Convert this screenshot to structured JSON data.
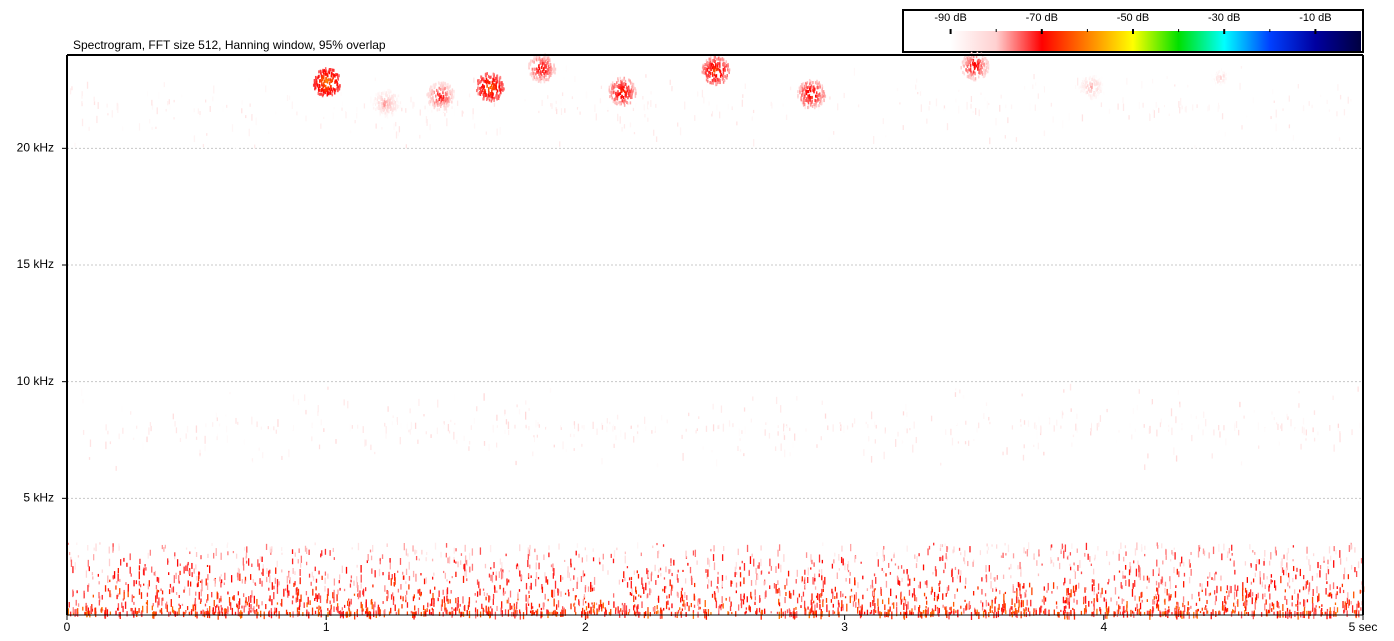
{
  "chart_data": {
    "type": "spectrogram",
    "title": "Spectrogram, FFT size 512, Hanning window, 95% overlap",
    "xlim": [
      0,
      5
    ],
    "xticks": [
      0,
      1,
      2,
      3,
      4,
      {
        "value": 5,
        "label": "5 sec"
      }
    ],
    "ylim": [
      0,
      24
    ],
    "yticks": [
      {
        "value": 5,
        "label": "5 kHz"
      },
      {
        "value": 10,
        "label": "10 kHz"
      },
      {
        "value": 15,
        "label": "15 kHz"
      },
      {
        "value": 20,
        "label": "20 kHz"
      }
    ],
    "grid": true,
    "colorbar": {
      "lim": [
        -100,
        0
      ],
      "ticks": [
        {
          "value": -90,
          "label": "-90 dB"
        },
        {
          "value": -70,
          "label": "-70 dB"
        },
        {
          "value": -50,
          "label": "-50 dB"
        },
        {
          "value": -30,
          "label": "-30 dB"
        },
        {
          "value": -10,
          "label": "-10 dB"
        }
      ],
      "minor_ticks": [
        -80,
        -60,
        -40,
        -20
      ],
      "colors": [
        "#ffffff",
        "#ffffff",
        "#ffd0d0",
        "#ff0000",
        "#ff8000",
        "#ffff00",
        "#00e000",
        "#00ffff",
        "#0040ff",
        "#0000a0",
        "#000040"
      ]
    },
    "calls": {
      "x": [
        1.0,
        1.23,
        1.44,
        1.63,
        1.83,
        2.14,
        2.5,
        2.87,
        3.5,
        3.95,
        4.45
      ],
      "y": [
        22.8,
        21.9,
        22.2,
        22.6,
        23.4,
        22.4,
        23.3,
        22.3,
        23.5,
        22.6,
        23.0
      ],
      "values": [
        -58,
        -74,
        -68,
        -60,
        -66,
        -64,
        -62,
        -64,
        -66,
        -76,
        -80
      ]
    },
    "bands": {
      "y": [
        [
          0,
          3
        ],
        [
          6.8,
          9.2
        ],
        [
          20.5,
          23
        ]
      ],
      "values": [
        -72,
        -82,
        -84
      ]
    }
  }
}
